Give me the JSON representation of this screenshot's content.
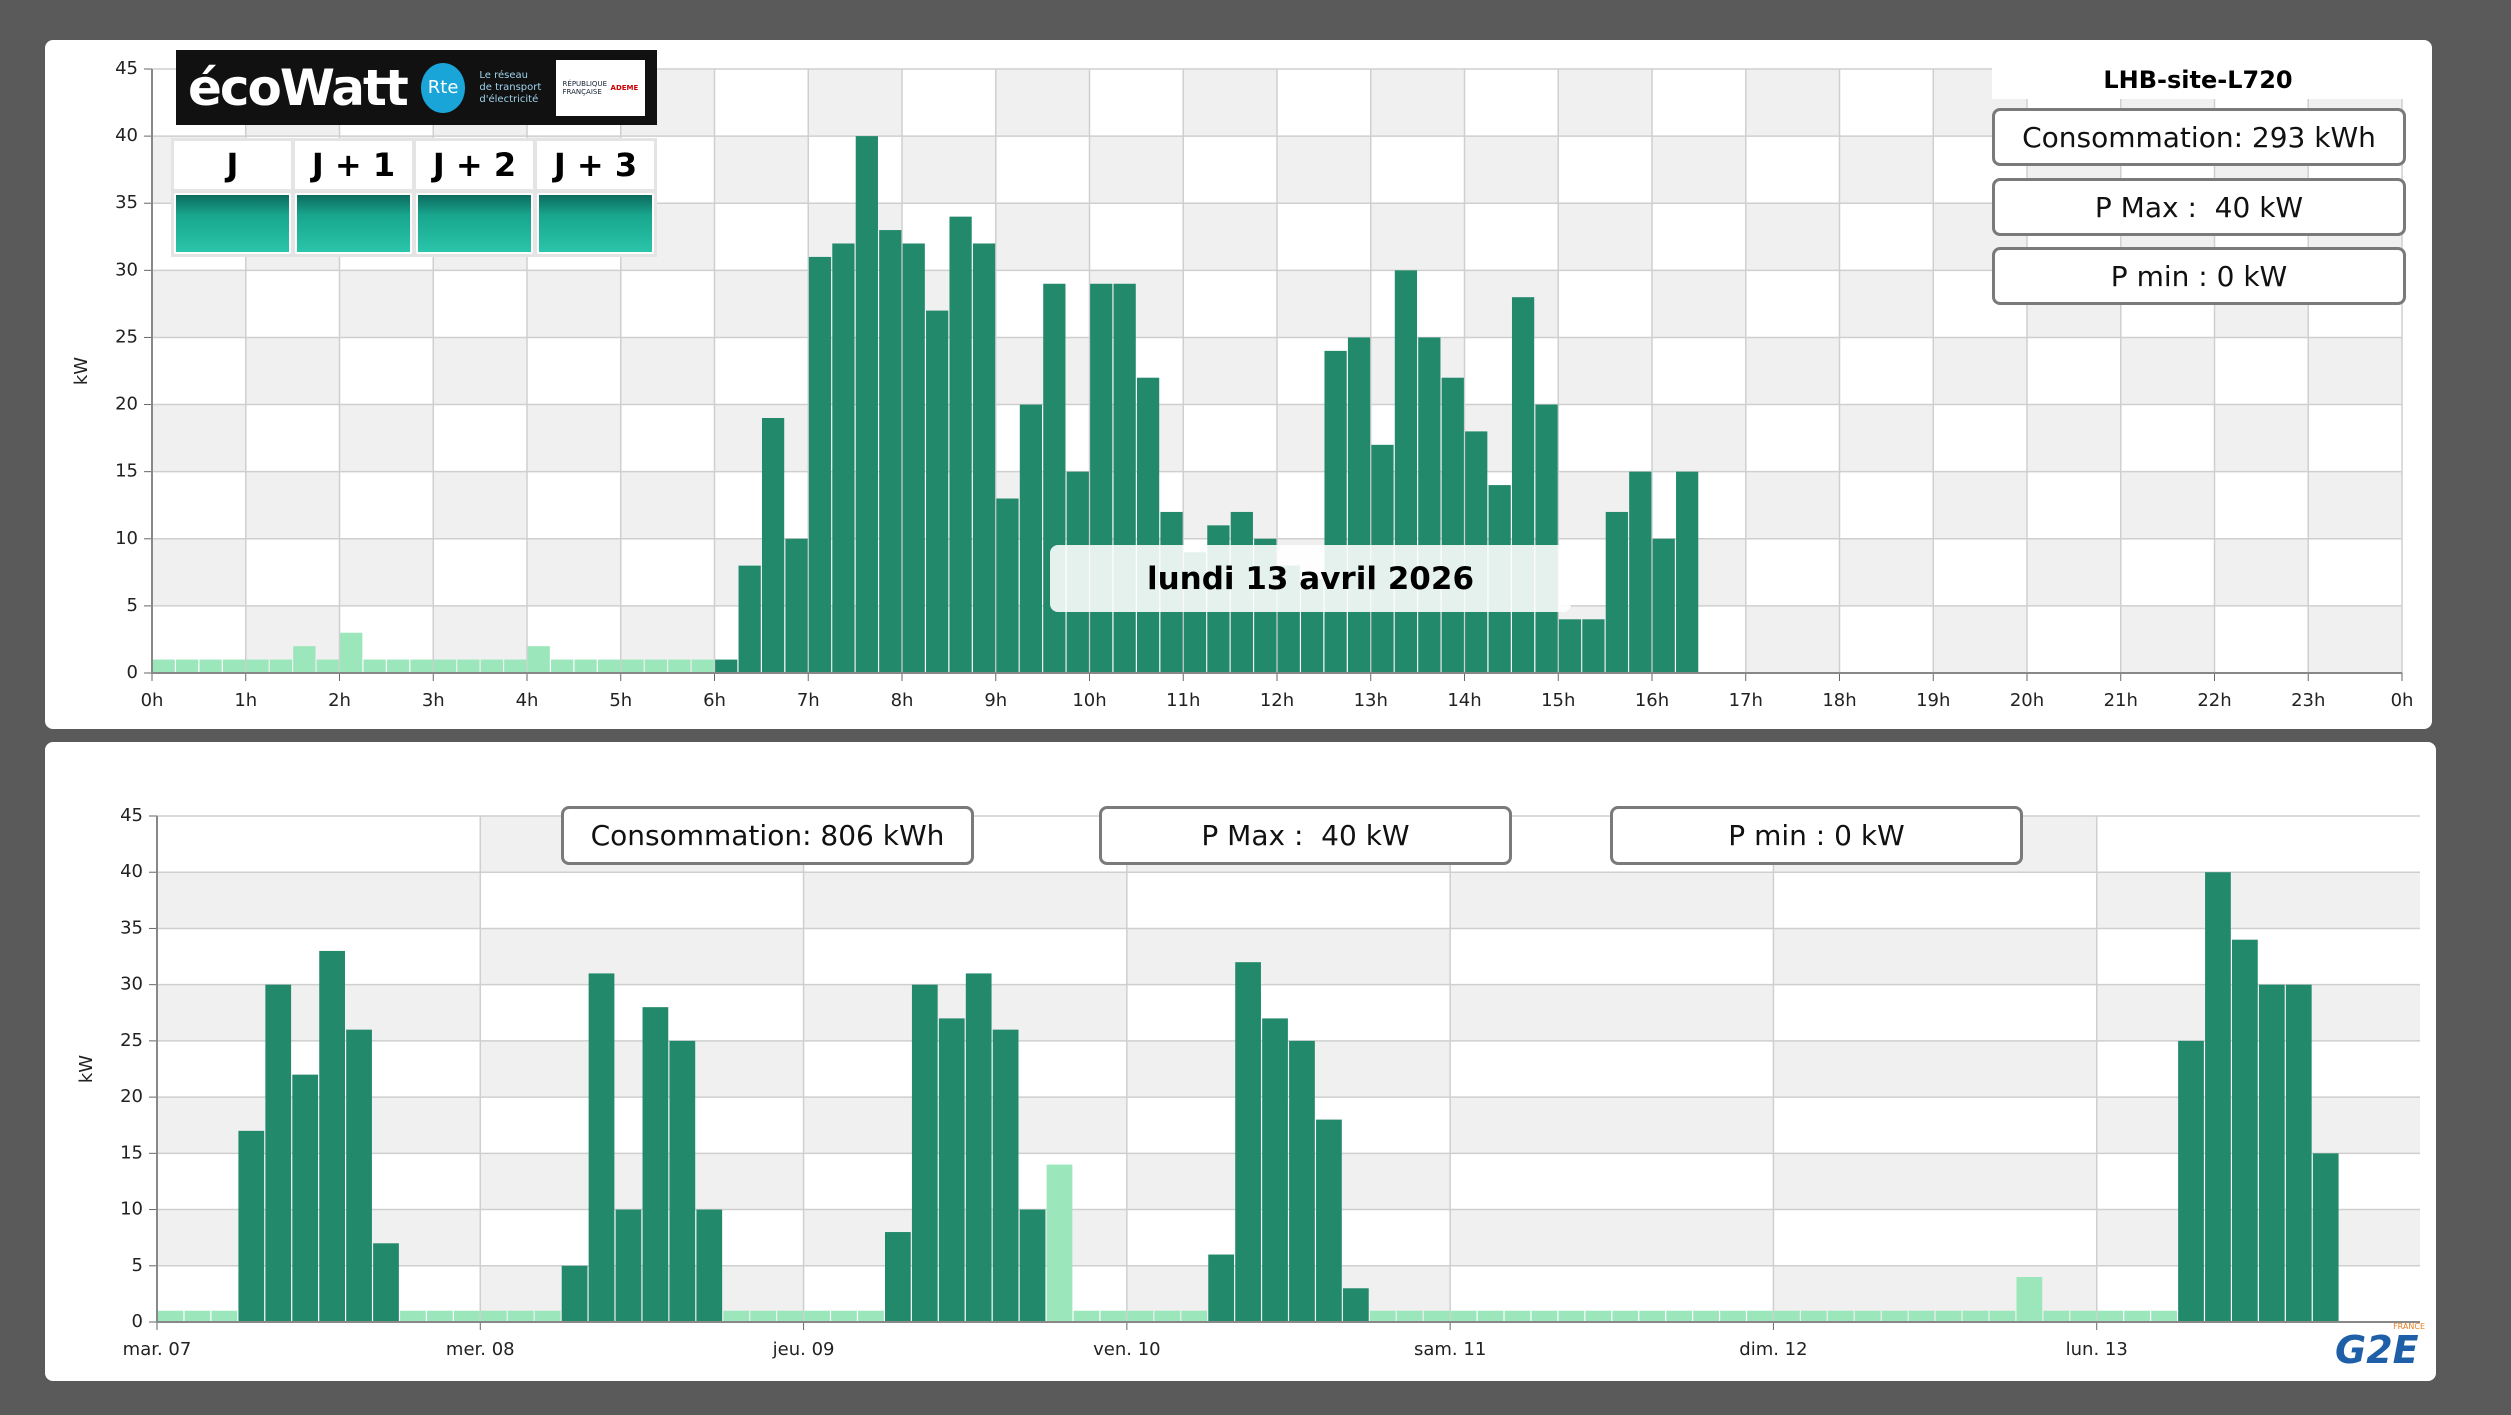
{
  "chart_data": [
    {
      "type": "bar",
      "y_label": "kW",
      "x": [
        0,
        0.25,
        0.5,
        0.75,
        1,
        1.25,
        1.5,
        1.75,
        2,
        2.25,
        2.5,
        2.75,
        3,
        3.25,
        3.5,
        3.75,
        4,
        4.25,
        4.5,
        4.75,
        5,
        5.25,
        5.5,
        5.75,
        6,
        6.25,
        6.5,
        6.75,
        7,
        7.25,
        7.5,
        7.75,
        8,
        8.25,
        8.5,
        8.75,
        9,
        9.25,
        9.5,
        9.75,
        10,
        10.25,
        10.5,
        10.75,
        11,
        11.25,
        11.5,
        11.75,
        12,
        12.25,
        12.5,
        12.75,
        13,
        13.25,
        13.5,
        13.75,
        14,
        14.25,
        14.5,
        14.75,
        15,
        15.25,
        15.5,
        15.75,
        16,
        16.25
      ],
      "series": [
        {
          "color": "#9be6bb",
          "values": [
            1,
            1,
            1,
            1,
            1,
            1,
            2,
            1,
            3,
            1,
            1,
            1,
            1,
            1,
            1,
            1,
            2,
            1,
            1,
            1,
            1,
            1,
            1,
            1,
            null,
            null,
            null,
            null,
            null,
            null,
            null,
            null,
            null,
            null,
            null,
            null,
            null,
            null,
            null,
            null,
            null,
            null,
            null,
            null,
            null,
            null,
            null,
            null,
            null,
            null,
            null,
            null,
            null,
            null,
            null,
            null,
            null,
            null,
            null,
            null,
            null,
            null,
            null,
            null,
            null,
            null
          ]
        },
        {
          "color": "#22896b",
          "values": [
            null,
            null,
            null,
            null,
            null,
            null,
            null,
            null,
            null,
            null,
            null,
            null,
            null,
            null,
            null,
            null,
            null,
            null,
            null,
            null,
            null,
            null,
            null,
            null,
            1,
            8,
            19,
            10,
            31,
            32,
            40,
            33,
            32,
            27,
            34,
            32,
            13,
            20,
            29,
            15,
            29,
            29,
            22,
            12,
            9,
            11,
            12,
            10,
            8,
            7,
            24,
            25,
            17,
            30,
            25,
            22,
            18,
            14,
            28,
            20,
            4,
            4,
            12,
            15,
            10,
            15
          ]
        }
      ],
      "xlim": [
        0,
        24
      ],
      "xticks": [
        {
          "value": 0,
          "label": "0h"
        },
        {
          "value": 1,
          "label": "1h"
        },
        {
          "value": 2,
          "label": "2h"
        },
        {
          "value": 3,
          "label": "3h"
        },
        {
          "value": 4,
          "label": "4h"
        },
        {
          "value": 5,
          "label": "5h"
        },
        {
          "value": 6,
          "label": "6h"
        },
        {
          "value": 7,
          "label": "7h"
        },
        {
          "value": 8,
          "label": "8h"
        },
        {
          "value": 9,
          "label": "9h"
        },
        {
          "value": 10,
          "label": "10h"
        },
        {
          "value": 11,
          "label": "11h"
        },
        {
          "value": 12,
          "label": "12h"
        },
        {
          "value": 13,
          "label": "13h"
        },
        {
          "value": 14,
          "label": "14h"
        },
        {
          "value": 15,
          "label": "15h"
        },
        {
          "value": 16,
          "label": "16h"
        },
        {
          "value": 17,
          "label": "17h"
        },
        {
          "value": 18,
          "label": "18h"
        },
        {
          "value": 19,
          "label": "19h"
        },
        {
          "value": 20,
          "label": "20h"
        },
        {
          "value": 21,
          "label": "21h"
        },
        {
          "value": 22,
          "label": "22h"
        },
        {
          "value": 23,
          "label": "23h"
        },
        {
          "value": 24,
          "label": "0h"
        }
      ],
      "ylim": [
        0,
        45
      ],
      "yticks": [
        0,
        5,
        10,
        15,
        20,
        25,
        30,
        35,
        40,
        45
      ],
      "grid": true
    },
    {
      "type": "bar",
      "y_label": "kW",
      "x": [
        0,
        2,
        4,
        6,
        8,
        10,
        12,
        14,
        16,
        18,
        20,
        22,
        24,
        26,
        28,
        30,
        32,
        34,
        36,
        38,
        40,
        42,
        44,
        46,
        48,
        50,
        52,
        54,
        56,
        58,
        60,
        62,
        64,
        66,
        68,
        70,
        72,
        74,
        76,
        78,
        80,
        82,
        84,
        86,
        88,
        90,
        92,
        94,
        96,
        98,
        100,
        102,
        104,
        106,
        108,
        110,
        112,
        114,
        116,
        118,
        120,
        122,
        124,
        126,
        128,
        130,
        132,
        134,
        136,
        138,
        140,
        142,
        144,
        146,
        148,
        150,
        152,
        154,
        156,
        158,
        160
      ],
      "series": [
        {
          "color": "#9be6bb",
          "values": [
            1,
            1,
            1,
            null,
            null,
            null,
            null,
            null,
            null,
            1,
            1,
            1,
            1,
            1,
            1,
            null,
            null,
            null,
            null,
            null,
            null,
            1,
            1,
            1,
            1,
            1,
            1,
            null,
            null,
            null,
            null,
            null,
            null,
            14,
            1,
            1,
            1,
            1,
            1,
            null,
            null,
            null,
            null,
            null,
            null,
            1,
            1,
            1,
            1,
            1,
            1,
            1,
            1,
            1,
            1,
            1,
            1,
            1,
            1,
            1,
            1,
            1,
            1,
            1,
            1,
            1,
            1,
            1,
            1,
            4,
            1,
            1,
            1,
            1,
            1,
            null,
            null,
            null,
            null,
            null,
            null
          ]
        },
        {
          "color": "#22896b",
          "values": [
            null,
            null,
            null,
            17,
            30,
            22,
            33,
            26,
            7,
            null,
            null,
            null,
            null,
            null,
            null,
            5,
            31,
            10,
            28,
            25,
            10,
            null,
            null,
            null,
            null,
            null,
            null,
            8,
            30,
            27,
            31,
            26,
            10,
            null,
            null,
            null,
            null,
            null,
            null,
            6,
            32,
            27,
            25,
            18,
            3,
            null,
            null,
            null,
            null,
            null,
            null,
            null,
            null,
            null,
            null,
            null,
            null,
            null,
            null,
            null,
            null,
            null,
            null,
            null,
            null,
            null,
            null,
            null,
            null,
            null,
            null,
            null,
            null,
            null,
            null,
            25,
            40,
            34,
            30,
            30,
            15
          ]
        }
      ],
      "xlim": [
        0,
        168
      ],
      "xticks": [
        {
          "value": 0,
          "label": "mar. 07"
        },
        {
          "value": 24,
          "label": "mer. 08"
        },
        {
          "value": 48,
          "label": "jeu. 09"
        },
        {
          "value": 72,
          "label": "ven. 10"
        },
        {
          "value": 96,
          "label": "sam. 11"
        },
        {
          "value": 120,
          "label": "dim. 12"
        },
        {
          "value": 144,
          "label": "lun. 13"
        }
      ],
      "ylim": [
        0,
        45
      ],
      "yticks": [
        0,
        5,
        10,
        15,
        20,
        25,
        30,
        35,
        40,
        45
      ],
      "grid": true
    }
  ],
  "ecowatt": {
    "brand": "écoWatt",
    "rte": "Rte",
    "rte_text": "Le réseau de transport d'électricité",
    "republic": "RÉPUBLIQUE FRANÇAISE",
    "ademe": "ADEME",
    "days": [
      "J",
      "J + 1",
      "J + 2",
      "J + 3"
    ]
  },
  "day_summary": {
    "site": "LHB-site-L720",
    "consumption": "Consommation: 293 kWh",
    "pmax": "P Max :  40 kW",
    "pmin": "P min : 0 kW",
    "tooltip": "lundi 13 avril 2026"
  },
  "week_summary": {
    "consumption": "Consommation: 806 kWh",
    "pmax": "P Max :  40 kW",
    "pmin": "P min : 0 kW"
  },
  "footer_logo": {
    "brand": "G2E",
    "country": "FRANCE"
  }
}
